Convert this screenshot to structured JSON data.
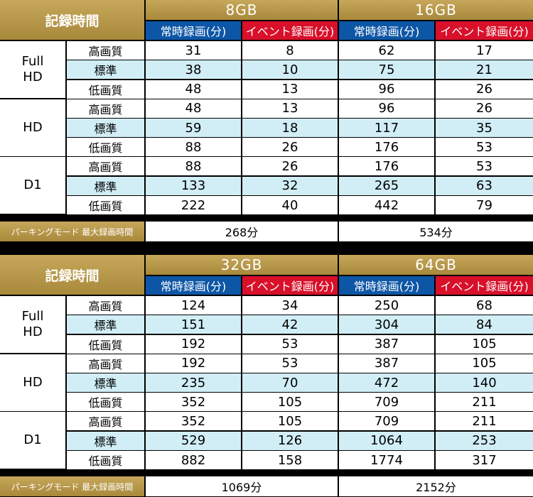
{
  "tables": [
    {
      "header_label": "記録時間",
      "capacities": [
        "8GB",
        "16GB"
      ],
      "mode_labels": [
        "常時録画(分)",
        "イベント録画(分)",
        "常時録画(分)",
        "イベント録画(分)"
      ],
      "groups": [
        {
          "label": "Full\nHD",
          "rows": [
            {
              "quality": "高画質",
              "values": [
                "31",
                "8",
                "62",
                "17"
              ]
            },
            {
              "quality": "標準",
              "values": [
                "38",
                "10",
                "75",
                "21"
              ]
            },
            {
              "quality": "低画質",
              "values": [
                "48",
                "13",
                "96",
                "26"
              ]
            }
          ]
        },
        {
          "label": "HD",
          "rows": [
            {
              "quality": "高画質",
              "values": [
                "48",
                "13",
                "96",
                "26"
              ]
            },
            {
              "quality": "標準",
              "values": [
                "59",
                "18",
                "117",
                "35"
              ]
            },
            {
              "quality": "低画質",
              "values": [
                "88",
                "26",
                "176",
                "53"
              ]
            }
          ]
        },
        {
          "label": "D1",
          "rows": [
            {
              "quality": "高画質",
              "values": [
                "88",
                "26",
                "176",
                "53"
              ]
            },
            {
              "quality": "標準",
              "values": [
                "133",
                "32",
                "265",
                "63"
              ]
            },
            {
              "quality": "低画質",
              "values": [
                "222",
                "40",
                "442",
                "79"
              ]
            }
          ]
        }
      ],
      "parking_label": "パーキングモード 最大録画時間",
      "parking_values": [
        "268分",
        "534分"
      ]
    },
    {
      "header_label": "記録時間",
      "capacities": [
        "32GB",
        "64GB"
      ],
      "mode_labels": [
        "常時録画(分)",
        "イベント録画(分)",
        "常時録画(分)",
        "イベント録画(分)"
      ],
      "groups": [
        {
          "label": "Full\nHD",
          "rows": [
            {
              "quality": "高画質",
              "values": [
                "124",
                "34",
                "250",
                "68"
              ]
            },
            {
              "quality": "標準",
              "values": [
                "151",
                "42",
                "304",
                "84"
              ]
            },
            {
              "quality": "低画質",
              "values": [
                "192",
                "53",
                "387",
                "105"
              ]
            }
          ]
        },
        {
          "label": "HD",
          "rows": [
            {
              "quality": "高画質",
              "values": [
                "192",
                "53",
                "387",
                "105"
              ]
            },
            {
              "quality": "標準",
              "values": [
                "235",
                "70",
                "472",
                "140"
              ]
            },
            {
              "quality": "低画質",
              "values": [
                "352",
                "105",
                "709",
                "211"
              ]
            }
          ]
        },
        {
          "label": "D1",
          "rows": [
            {
              "quality": "高画質",
              "values": [
                "352",
                "105",
                "709",
                "211"
              ]
            },
            {
              "quality": "標準",
              "values": [
                "529",
                "126",
                "1064",
                "253"
              ]
            },
            {
              "quality": "低画質",
              "values": [
                "882",
                "158",
                "1774",
                "317"
              ]
            }
          ]
        }
      ],
      "parking_label": "パーキングモード 最大録画時間",
      "parking_values": [
        "1069分",
        "2152分"
      ]
    }
  ],
  "colors": {
    "header_gold": "#b8974a",
    "mode_continuous": "#0d56a6",
    "mode_event": "#d8102a",
    "row_stripe": "#d1eef6",
    "row_plain": "#ffffff"
  }
}
